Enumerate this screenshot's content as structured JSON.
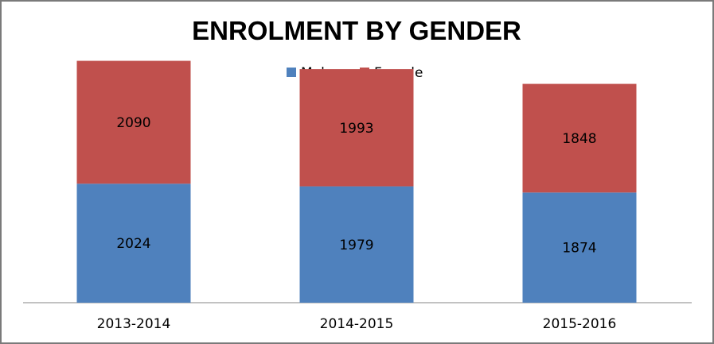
{
  "chart_data": {
    "type": "bar",
    "stacked": true,
    "title": "ENROLMENT BY GENDER",
    "xlabel": "",
    "ylabel": "",
    "categories": [
      "2013-2014",
      "2014-2015",
      "2015-2016"
    ],
    "series": [
      {
        "name": "Male",
        "values": [
          2024,
          1979,
          1874
        ],
        "color": "#4f81bd"
      },
      {
        "name": "Female",
        "values": [
          2090,
          1993,
          1848
        ],
        "color": "#c0504d"
      }
    ],
    "ylim": [
      0,
      4500
    ],
    "grid": false,
    "legend": "top-center",
    "data_labels": true
  }
}
